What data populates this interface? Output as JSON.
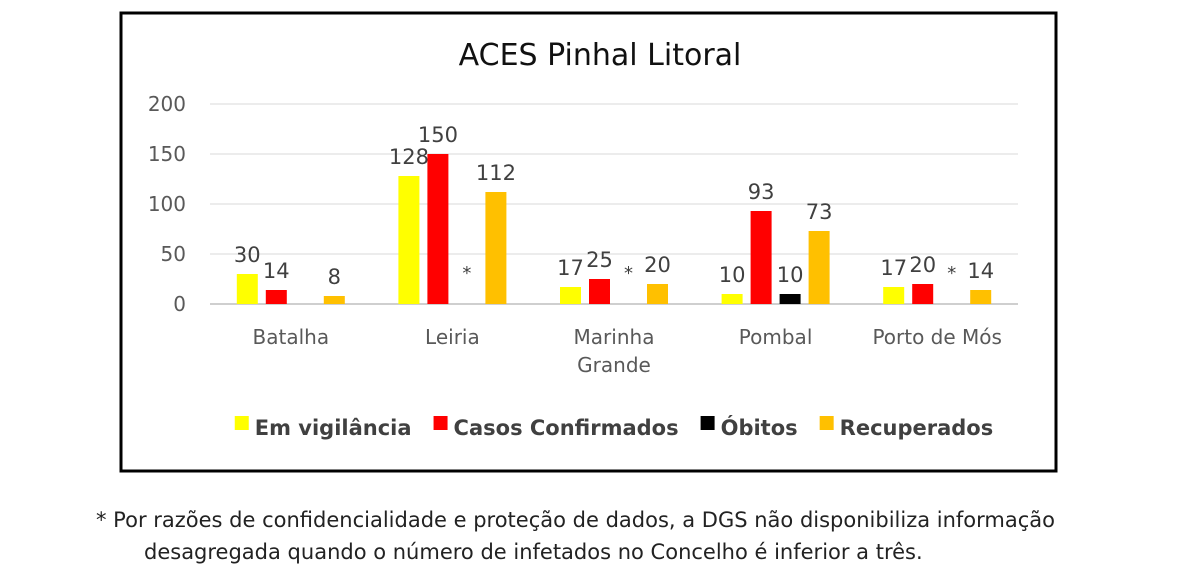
{
  "chart_data": {
    "type": "bar",
    "title": "ACES Pinhal Litoral",
    "xlabel": "",
    "ylabel": "",
    "ylim": [
      0,
      200
    ],
    "yticks": [
      0,
      50,
      100,
      150,
      200
    ],
    "grid": true,
    "legend_position": "bottom",
    "categories": [
      "Batalha",
      "Leiria",
      "Marinha Grande",
      "Pombal",
      "Porto de Mós"
    ],
    "category_lines": [
      [
        "Batalha"
      ],
      [
        "Leiria"
      ],
      [
        "Marinha",
        "Grande"
      ],
      [
        "Pombal"
      ],
      [
        "Porto de Mós"
      ]
    ],
    "series": [
      {
        "name": "Em vigilância",
        "color": "#FFFF00",
        "values": [
          30,
          128,
          17,
          10,
          17
        ],
        "labels": [
          "30",
          "128",
          "17",
          "10",
          "17"
        ]
      },
      {
        "name": "Casos Confirmados",
        "color": "#FF0000",
        "values": [
          14,
          150,
          25,
          93,
          20
        ],
        "labels": [
          "14",
          "150",
          "25",
          "93",
          "20"
        ]
      },
      {
        "name": "Óbitos",
        "color": "#000000",
        "values": [
          null,
          null,
          null,
          10,
          null
        ],
        "labels": [
          "",
          "*",
          "*",
          "10",
          "*"
        ]
      },
      {
        "name": "Recuperados",
        "color": "#FFC000",
        "values": [
          8,
          112,
          20,
          73,
          14
        ],
        "labels": [
          "8",
          "112",
          "20",
          "73",
          "14"
        ]
      }
    ]
  },
  "footnote": {
    "line1": "* Por razões de confidencialidade e proteção de dados, a DGS não disponibiliza informação",
    "line2": "desagregada quando o número de infetados no Concelho é inferior a três."
  }
}
